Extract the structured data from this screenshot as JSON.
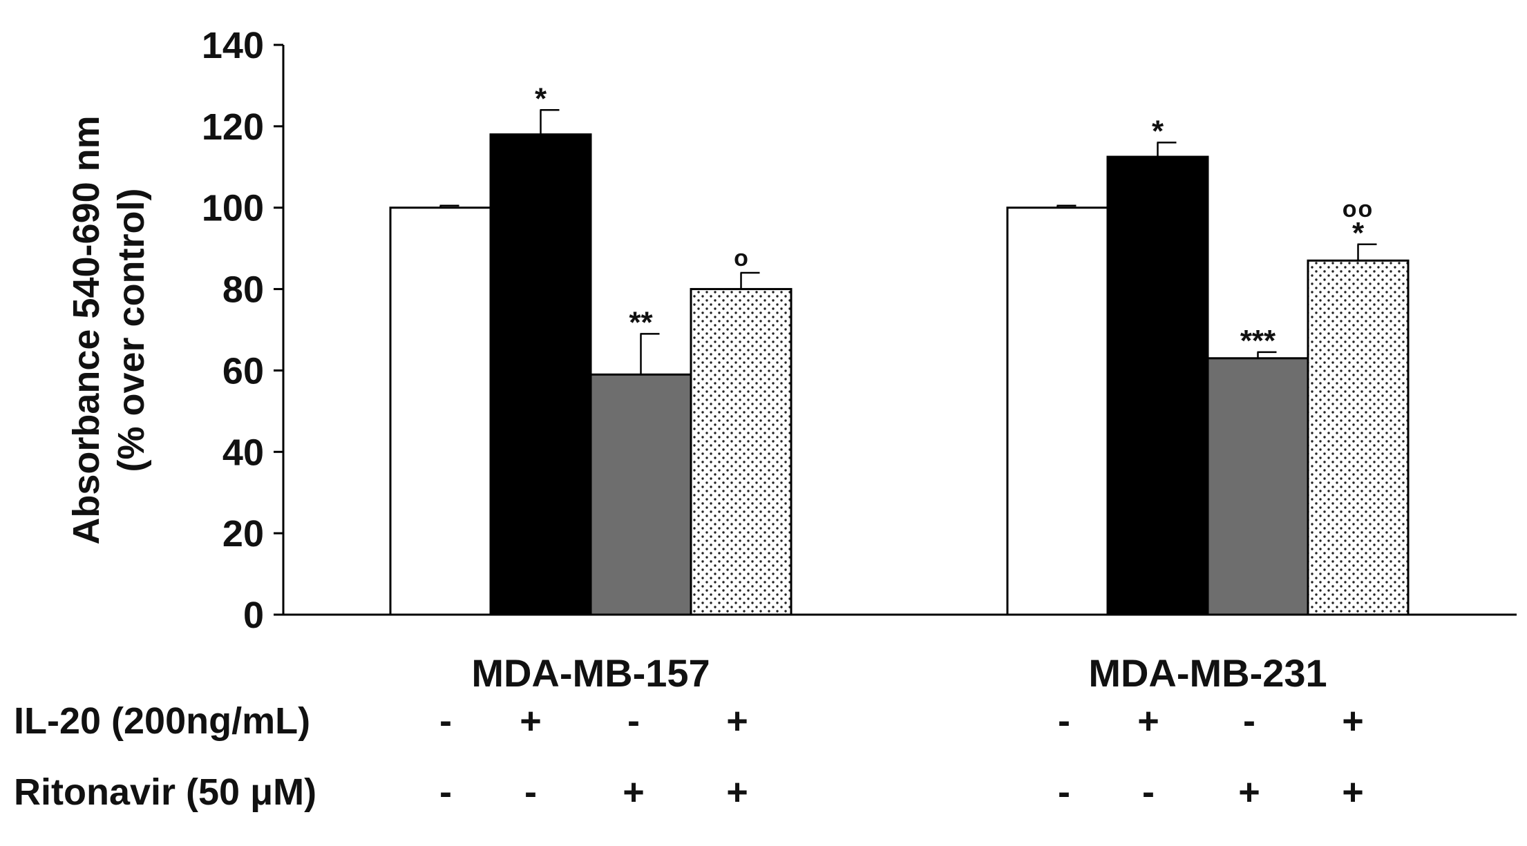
{
  "chart_data": {
    "type": "bar",
    "title": "",
    "xlabel": "",
    "ylabel_lines": [
      "Absorbance  540-690 nm",
      "(% over control)"
    ],
    "ylim": [
      0,
      140
    ],
    "yticks": [
      0,
      20,
      40,
      60,
      80,
      100,
      120,
      140
    ],
    "grid": false,
    "groups": [
      {
        "name": "MDA-MB-157",
        "bars": [
          {
            "treatment": "control",
            "value": 100,
            "error": 0.5,
            "annotation": ""
          },
          {
            "treatment": "IL-20",
            "value": 118,
            "error": 6,
            "annotation": "*"
          },
          {
            "treatment": "Ritonavir",
            "value": 59,
            "error": 10,
            "annotation": "**"
          },
          {
            "treatment": "IL-20 + Ritonavir",
            "value": 80,
            "error": 4,
            "annotation": "o"
          }
        ]
      },
      {
        "name": "MDA-MB-231",
        "bars": [
          {
            "treatment": "control",
            "value": 100,
            "error": 0.5,
            "annotation": ""
          },
          {
            "treatment": "IL-20",
            "value": 112.5,
            "error": 3.5,
            "annotation": "*"
          },
          {
            "treatment": "Ritonavir",
            "value": 63,
            "error": 1.5,
            "annotation": "***"
          },
          {
            "treatment": "IL-20 + Ritonavir",
            "value": 87,
            "error": 4,
            "annotation": "*",
            "annotation_top": "oo"
          }
        ]
      }
    ],
    "bar_styles": [
      {
        "fill": "#ffffff",
        "pattern": "none"
      },
      {
        "fill": "#000000",
        "pattern": "none"
      },
      {
        "fill": "#6e6e6e",
        "pattern": "none"
      },
      {
        "fill": "#ffffff",
        "pattern": "dots"
      }
    ],
    "treatment_rows": [
      {
        "label": "IL-20 (200ng/mL)",
        "signs": [
          [
            "-",
            "+",
            "-",
            "+"
          ],
          [
            "-",
            "+",
            "-",
            "+"
          ]
        ]
      },
      {
        "label": "Ritonavir (50 μM)",
        "signs": [
          [
            "-",
            "-",
            "+",
            "+"
          ],
          [
            "-",
            "-",
            "+",
            "+"
          ]
        ]
      }
    ]
  }
}
